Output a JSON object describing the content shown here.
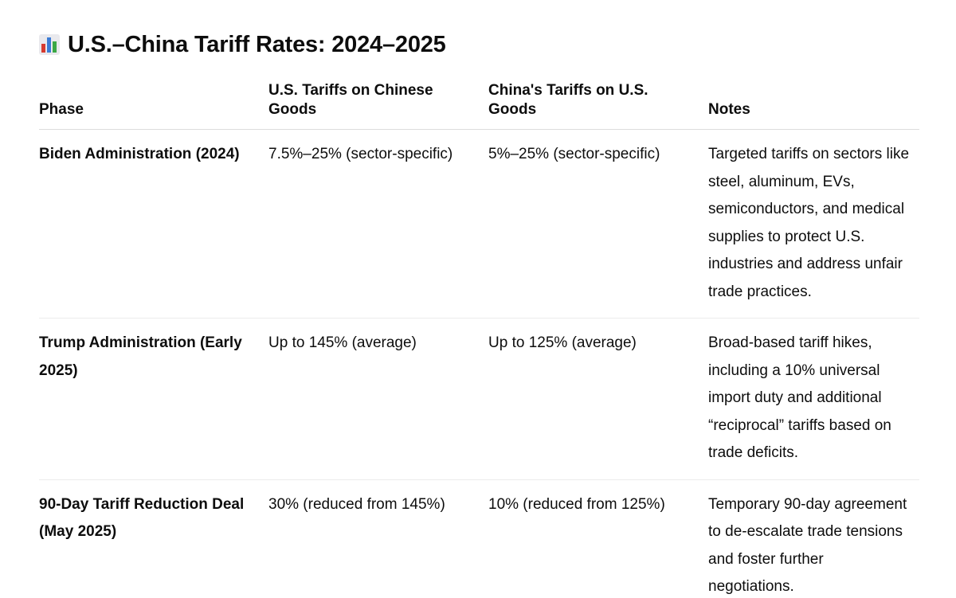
{
  "title": "U.S.–China Tariff Rates: 2024–2025",
  "title_icon": "bar-chart-emoji",
  "table": {
    "headers": {
      "phase": "Phase",
      "us": "U.S. Tariffs on Chinese Goods",
      "china": "China's Tariffs on U.S. Goods",
      "notes": "Notes"
    },
    "rows": [
      {
        "phase": "Biden Administration (2024)",
        "us": "7.5%–25% (sector-specific)",
        "china": "5%–25% (sector-specific)",
        "notes": "Targeted tariffs on sectors like steel, aluminum, EVs, semiconductors, and medical supplies to protect U.S. industries and address unfair trade practices."
      },
      {
        "phase": "Trump Administration (Early 2025)",
        "us": "Up to 145% (average)",
        "china": "Up to 125% (average)",
        "notes": "Broad-based tariff hikes, including a 10% universal import duty and additional “reciprocal” tariffs based on trade deficits."
      },
      {
        "phase": "90-Day Tariff Reduction Deal (May 2025)",
        "us": "30% (reduced from 145%)",
        "china": "10% (reduced from 125%)",
        "notes": "Temporary 90-day agreement to de-escalate trade tensions and foster further negotiations."
      }
    ]
  }
}
